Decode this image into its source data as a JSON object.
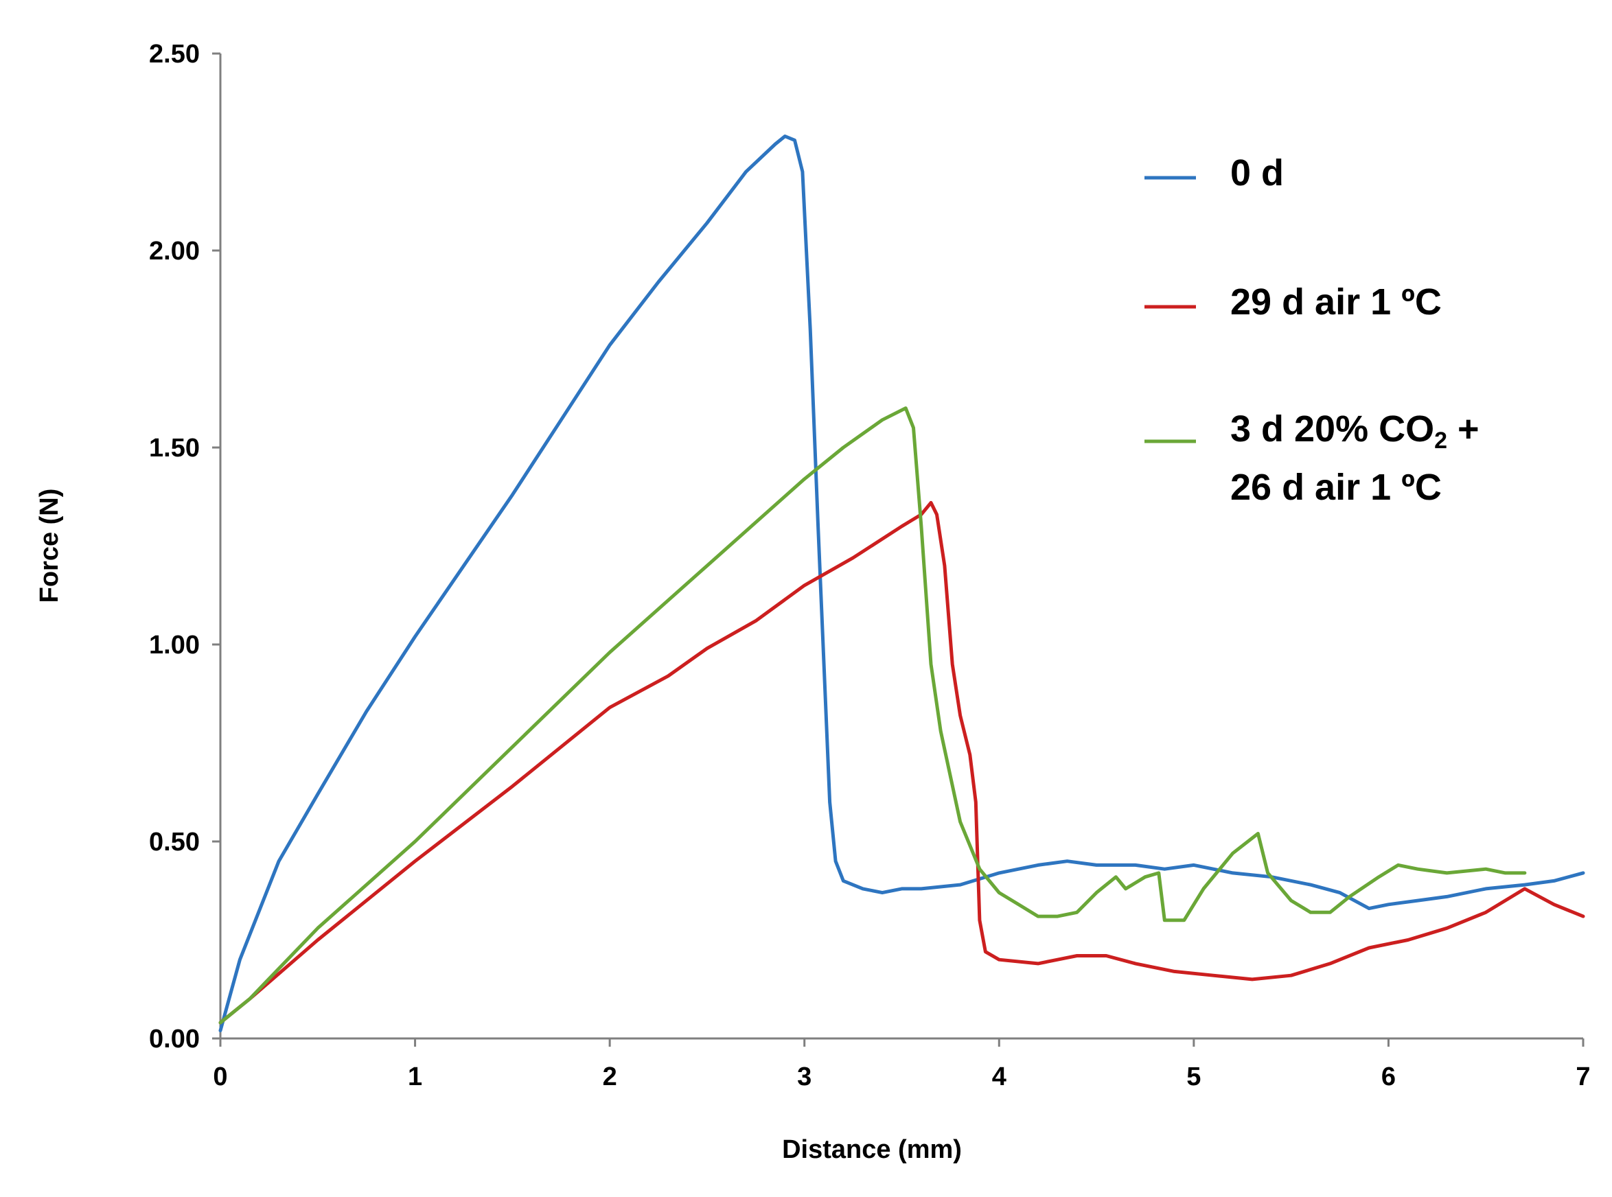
{
  "chart_data": {
    "type": "line",
    "xlabel": "Distance (mm)",
    "ylabel": "Force (N)",
    "xlim": [
      0,
      7
    ],
    "ylim": [
      0,
      2.5
    ],
    "x_ticks": [
      0,
      1,
      2,
      3,
      4,
      5,
      6,
      7
    ],
    "x_tick_labels": [
      "0",
      "1",
      "2",
      "3",
      "4",
      "5",
      "6",
      "7"
    ],
    "y_ticks": [
      0,
      0.5,
      1.0,
      1.5,
      2.0,
      2.5
    ],
    "y_tick_labels": [
      "0.00",
      "0.50",
      "1.00",
      "1.50",
      "2.00",
      "2.50"
    ],
    "grid": false,
    "legend_position": "top-right",
    "series": [
      {
        "name": "0 d",
        "legend_lines": [
          "0 d"
        ],
        "color": "#2e75c0",
        "points": [
          [
            0,
            0.02
          ],
          [
            0.1,
            0.2
          ],
          [
            0.3,
            0.45
          ],
          [
            0.5,
            0.62
          ],
          [
            0.75,
            0.83
          ],
          [
            1.0,
            1.02
          ],
          [
            1.25,
            1.2
          ],
          [
            1.5,
            1.38
          ],
          [
            1.75,
            1.57
          ],
          [
            2.0,
            1.76
          ],
          [
            2.25,
            1.92
          ],
          [
            2.5,
            2.07
          ],
          [
            2.7,
            2.2
          ],
          [
            2.85,
            2.27
          ],
          [
            2.9,
            2.29
          ],
          [
            2.95,
            2.28
          ],
          [
            2.99,
            2.2
          ],
          [
            3.03,
            1.8
          ],
          [
            3.07,
            1.3
          ],
          [
            3.1,
            0.95
          ],
          [
            3.13,
            0.6
          ],
          [
            3.16,
            0.45
          ],
          [
            3.2,
            0.4
          ],
          [
            3.3,
            0.38
          ],
          [
            3.4,
            0.37
          ],
          [
            3.5,
            0.38
          ],
          [
            3.6,
            0.38
          ],
          [
            3.8,
            0.39
          ],
          [
            4.0,
            0.42
          ],
          [
            4.2,
            0.44
          ],
          [
            4.35,
            0.45
          ],
          [
            4.5,
            0.44
          ],
          [
            4.7,
            0.44
          ],
          [
            4.85,
            0.43
          ],
          [
            5.0,
            0.44
          ],
          [
            5.2,
            0.42
          ],
          [
            5.4,
            0.41
          ],
          [
            5.6,
            0.39
          ],
          [
            5.75,
            0.37
          ],
          [
            5.9,
            0.33
          ],
          [
            6.0,
            0.34
          ],
          [
            6.15,
            0.35
          ],
          [
            6.3,
            0.36
          ],
          [
            6.5,
            0.38
          ],
          [
            6.7,
            0.39
          ],
          [
            6.85,
            0.4
          ],
          [
            7.0,
            0.42
          ]
        ]
      },
      {
        "name": "29 d air 1 ºC",
        "legend_lines": [
          "29 d air 1 ºC"
        ],
        "color": "#cc1f1f",
        "points": [
          [
            0,
            0.04
          ],
          [
            0.15,
            0.1
          ],
          [
            0.5,
            0.25
          ],
          [
            1.0,
            0.45
          ],
          [
            1.5,
            0.64
          ],
          [
            2.0,
            0.84
          ],
          [
            2.3,
            0.92
          ],
          [
            2.5,
            0.99
          ],
          [
            2.75,
            1.06
          ],
          [
            3.0,
            1.15
          ],
          [
            3.25,
            1.22
          ],
          [
            3.5,
            1.3
          ],
          [
            3.6,
            1.33
          ],
          [
            3.65,
            1.36
          ],
          [
            3.68,
            1.33
          ],
          [
            3.72,
            1.2
          ],
          [
            3.76,
            0.95
          ],
          [
            3.8,
            0.82
          ],
          [
            3.85,
            0.72
          ],
          [
            3.88,
            0.6
          ],
          [
            3.9,
            0.3
          ],
          [
            3.93,
            0.22
          ],
          [
            4.0,
            0.2
          ],
          [
            4.2,
            0.19
          ],
          [
            4.4,
            0.21
          ],
          [
            4.55,
            0.21
          ],
          [
            4.7,
            0.19
          ],
          [
            4.9,
            0.17
          ],
          [
            5.1,
            0.16
          ],
          [
            5.3,
            0.15
          ],
          [
            5.5,
            0.16
          ],
          [
            5.7,
            0.19
          ],
          [
            5.9,
            0.23
          ],
          [
            6.1,
            0.25
          ],
          [
            6.3,
            0.28
          ],
          [
            6.5,
            0.32
          ],
          [
            6.7,
            0.38
          ],
          [
            6.85,
            0.34
          ],
          [
            7.0,
            0.31
          ]
        ]
      },
      {
        "name": "3 d 20% CO2 + 26 d air 1 ºC",
        "legend_lines": [
          "3 d 20% CO2 +",
          "26 d air 1 ºC"
        ],
        "color": "#6aa737",
        "points": [
          [
            0,
            0.04
          ],
          [
            0.15,
            0.1
          ],
          [
            0.5,
            0.28
          ],
          [
            1.0,
            0.5
          ],
          [
            1.5,
            0.74
          ],
          [
            2.0,
            0.98
          ],
          [
            2.5,
            1.2
          ],
          [
            3.0,
            1.42
          ],
          [
            3.2,
            1.5
          ],
          [
            3.4,
            1.57
          ],
          [
            3.52,
            1.6
          ],
          [
            3.56,
            1.55
          ],
          [
            3.6,
            1.3
          ],
          [
            3.65,
            0.95
          ],
          [
            3.7,
            0.78
          ],
          [
            3.8,
            0.55
          ],
          [
            3.9,
            0.43
          ],
          [
            4.0,
            0.37
          ],
          [
            4.1,
            0.34
          ],
          [
            4.2,
            0.31
          ],
          [
            4.3,
            0.31
          ],
          [
            4.4,
            0.32
          ],
          [
            4.5,
            0.37
          ],
          [
            4.6,
            0.41
          ],
          [
            4.65,
            0.38
          ],
          [
            4.75,
            0.41
          ],
          [
            4.82,
            0.42
          ],
          [
            4.85,
            0.3
          ],
          [
            4.95,
            0.3
          ],
          [
            5.05,
            0.38
          ],
          [
            5.2,
            0.47
          ],
          [
            5.33,
            0.52
          ],
          [
            5.38,
            0.42
          ],
          [
            5.5,
            0.35
          ],
          [
            5.6,
            0.32
          ],
          [
            5.7,
            0.32
          ],
          [
            5.8,
            0.36
          ],
          [
            5.95,
            0.41
          ],
          [
            6.05,
            0.44
          ],
          [
            6.15,
            0.43
          ],
          [
            6.3,
            0.42
          ],
          [
            6.5,
            0.43
          ],
          [
            6.6,
            0.42
          ],
          [
            6.7,
            0.42
          ]
        ]
      }
    ]
  }
}
